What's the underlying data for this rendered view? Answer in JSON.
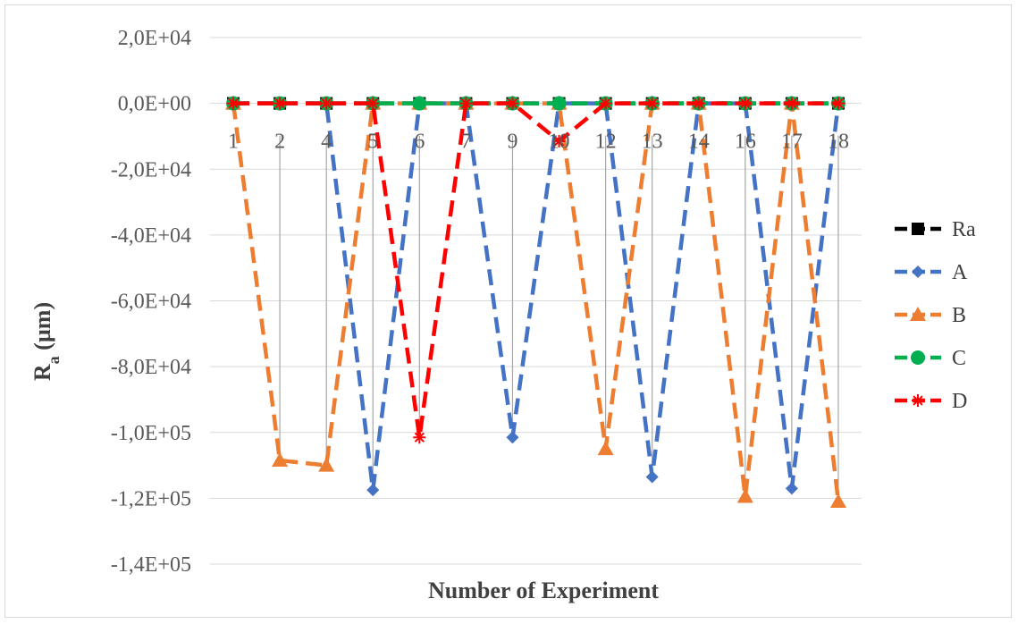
{
  "chart_data": {
    "type": "line",
    "xlabel": "Number of Experiment",
    "ylabel_main": "R",
    "ylabel_sub": "a",
    "ylabel_unit": " (µm)",
    "ylim": [
      -140000,
      20000
    ],
    "y_ticks": [
      {
        "value": 20000,
        "label": "2,0E+04"
      },
      {
        "value": 0,
        "label": "0,0E+00"
      },
      {
        "value": -20000,
        "label": "-2,0E+04"
      },
      {
        "value": -40000,
        "label": "-4,0E+04"
      },
      {
        "value": -60000,
        "label": "-6,0E+04"
      },
      {
        "value": -80000,
        "label": "-8,0E+04"
      },
      {
        "value": -100000,
        "label": "-1,0E+05"
      },
      {
        "value": -120000,
        "label": "-1,2E+05"
      },
      {
        "value": -140000,
        "label": "-1,4E+05"
      }
    ],
    "grid": true,
    "legend_position": "right",
    "categories": [
      "1",
      "2",
      "4",
      "5",
      "6",
      "7",
      "9",
      "10",
      "12",
      "13",
      "14",
      "16",
      "17",
      "18"
    ],
    "series": [
      {
        "name": "Ra",
        "color": "#000000",
        "marker": "square",
        "values": [
          0,
          0,
          0,
          0,
          0,
          0,
          0,
          0,
          0,
          0,
          0,
          0,
          0,
          0
        ]
      },
      {
        "name": "A",
        "color": "#4472C4",
        "marker": "diamond",
        "values": [
          0,
          0,
          0,
          -117500,
          0,
          0,
          -101500,
          0,
          0,
          -113500,
          0,
          0,
          -117000,
          0
        ]
      },
      {
        "name": "B",
        "color": "#ED7D31",
        "marker": "triangle",
        "values": [
          0,
          -108500,
          -110000,
          0,
          0,
          0,
          0,
          0,
          -105000,
          0,
          0,
          -119500,
          0,
          -121000
        ]
      },
      {
        "name": "C",
        "color": "#00B050",
        "marker": "circle",
        "values": [
          0,
          0,
          0,
          0,
          0,
          0,
          0,
          0,
          0,
          0,
          0,
          0,
          0,
          0
        ]
      },
      {
        "name": "D",
        "color": "#FF0000",
        "marker": "star",
        "values": [
          0,
          0,
          0,
          0,
          -101500,
          0,
          0,
          -11500,
          0,
          0,
          0,
          0,
          0,
          0
        ]
      }
    ]
  }
}
